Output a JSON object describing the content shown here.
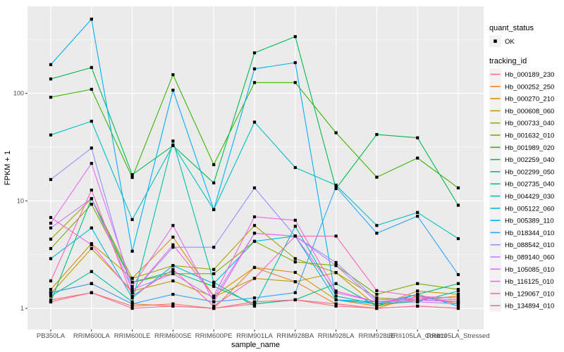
{
  "figure": {
    "y_axis_title": "FPKM + 1",
    "x_axis_title": "sample_name",
    "legend": {
      "quant_title": "quant_status",
      "quant_items": [
        {
          "label": "OK",
          "symbol": "black-square-point"
        }
      ],
      "tracking_title": "tracking_id"
    },
    "colors": {
      "panel_background": "#EBEBEB",
      "gridline": "#FFFFFF",
      "axis_text": "#4D4D4D",
      "tick_mark": "#333333",
      "point": "#000000",
      "legend_key_background": "#F2F2F2"
    }
  },
  "chart_data": {
    "type": "line",
    "title": "",
    "xlabel": "sample_name",
    "ylabel": "FPKM + 1",
    "y_scale": "log10",
    "ylim": [
      1,
      560
    ],
    "y_ticks": [
      1,
      10,
      100
    ],
    "y_minor_ticks": [
      3.162,
      31.62,
      316.2
    ],
    "grid": "white major+minor on grey panel",
    "legend_position": "right",
    "point_shape": "small black square (quant_status OK)",
    "categories": [
      "PB350LA",
      "RRIM600LA",
      "RRIM600LE",
      "RRIM600SE",
      "RRIM600PE",
      "RRIM901LA",
      "RRIM928BA",
      "RRIM928LA",
      "RRIM928LE",
      "RRII105LA_Control",
      "RRII105LA_Stressed"
    ],
    "series": [
      {
        "name": "Hb_000189_230",
        "color": "#F8766D",
        "values": [
          1.2,
          1.4,
          1.05,
          1.1,
          1.0,
          1.1,
          1.2,
          1.05,
          1.0,
          1.05,
          1.0
        ]
      },
      {
        "name": "Hb_000252_250",
        "color": "#EA8331",
        "values": [
          1.4,
          1.7,
          1.1,
          1.05,
          1.0,
          2.4,
          1.77,
          1.1,
          1.0,
          1.3,
          1.1
        ]
      },
      {
        "name": "Hb_000270_210",
        "color": "#D89000",
        "values": [
          1.5,
          4.0,
          1.9,
          4.6,
          1.3,
          2.4,
          2.16,
          1.2,
          1.05,
          1.2,
          1.3
        ]
      },
      {
        "name": "Hb_000608_060",
        "color": "#C09B00",
        "values": [
          1.37,
          3.6,
          1.45,
          1.8,
          1.28,
          1.9,
          1.77,
          2.15,
          1.05,
          1.45,
          1.35
        ]
      },
      {
        "name": "Hb_000733_040",
        "color": "#A3A500",
        "values": [
          4.4,
          10.5,
          1.9,
          2.5,
          2.3,
          5.9,
          2.9,
          2.15,
          1.25,
          1.2,
          1.15
        ]
      },
      {
        "name": "Hb_001632_010",
        "color": "#7CAE00",
        "values": [
          3.6,
          9.3,
          1.75,
          2.1,
          2.1,
          4.2,
          2.7,
          2.5,
          1.35,
          1.7,
          1.5
        ]
      },
      {
        "name": "Hb_001989_020",
        "color": "#39B600",
        "values": [
          92,
          109,
          16.5,
          149,
          21.7,
          126,
          126,
          43,
          16.6,
          25,
          13.2
        ]
      },
      {
        "name": "Hb_002259_040",
        "color": "#00BB4E",
        "values": [
          136,
          174,
          17.5,
          32.6,
          14.7,
          238,
          337,
          13,
          41.4,
          38.6,
          9.1
        ]
      },
      {
        "name": "Hb_002299_050",
        "color": "#00BF7D",
        "values": [
          1.15,
          10.5,
          1.75,
          2.2,
          1.6,
          1.1,
          1.2,
          1.7,
          1.05,
          1.35,
          1.7
        ]
      },
      {
        "name": "Hb_002735_040",
        "color": "#00C1A3",
        "values": [
          1.3,
          2.2,
          1.15,
          36,
          1.75,
          1.05,
          5.8,
          1.3,
          1.1,
          1.15,
          1.45
        ]
      },
      {
        "name": "Hb_004429_030",
        "color": "#00BFC4",
        "values": [
          41,
          55,
          6.7,
          33,
          8.3,
          54,
          20.4,
          14,
          5.9,
          7.8,
          4.45
        ]
      },
      {
        "name": "Hb_005122_060",
        "color": "#00BAE0",
        "values": [
          2.9,
          5.6,
          1.25,
          2.5,
          1.7,
          4.2,
          4.7,
          1.2,
          1.15,
          1.2,
          1.15
        ]
      },
      {
        "name": "Hb_005389_110",
        "color": "#00B0F6",
        "values": [
          185,
          490,
          3.4,
          107,
          8.3,
          169,
          193,
          1.2,
          1.1,
          1.35,
          1.05
        ]
      },
      {
        "name": "Hb_018344_010",
        "color": "#35A2FF",
        "values": [
          1.4,
          1.7,
          1.1,
          1.35,
          1.15,
          1.25,
          1.4,
          13.5,
          5.0,
          7.2,
          2.06
        ]
      },
      {
        "name": "Hb_088542_010",
        "color": "#9590FF",
        "values": [
          15.8,
          31,
          1.4,
          3.7,
          3.7,
          13.2,
          4.7,
          2.67,
          1.2,
          1.25,
          1.2
        ]
      },
      {
        "name": "Hb_089140_060",
        "color": "#C77CFF",
        "values": [
          5.6,
          10.5,
          1.5,
          2.1,
          1.25,
          5.0,
          4.7,
          2.5,
          1.15,
          1.15,
          1.1
        ]
      },
      {
        "name": "Hb_105085_010",
        "color": "#E76BF3",
        "values": [
          6.2,
          22.3,
          1.6,
          5.9,
          1.15,
          5.0,
          4.7,
          1.4,
          1.15,
          1.2,
          1.15
        ]
      },
      {
        "name": "Hb_116125_010",
        "color": "#FA62DB",
        "values": [
          7.0,
          3.9,
          1.4,
          3.9,
          1.3,
          7.1,
          6.6,
          1.45,
          1.15,
          1.25,
          1.15
        ]
      },
      {
        "name": "Hb_129067_010",
        "color": "#FF62BC",
        "values": [
          1.8,
          12.6,
          1.3,
          2.3,
          1.05,
          1.9,
          4.7,
          4.7,
          1.46,
          1.29,
          1.25
        ]
      },
      {
        "name": "Hb_134894_010",
        "color": "#FF6A98",
        "values": [
          1.15,
          1.4,
          1.0,
          1.05,
          1.0,
          1.15,
          1.2,
          1.1,
          1.0,
          1.05,
          1.0
        ]
      }
    ]
  }
}
